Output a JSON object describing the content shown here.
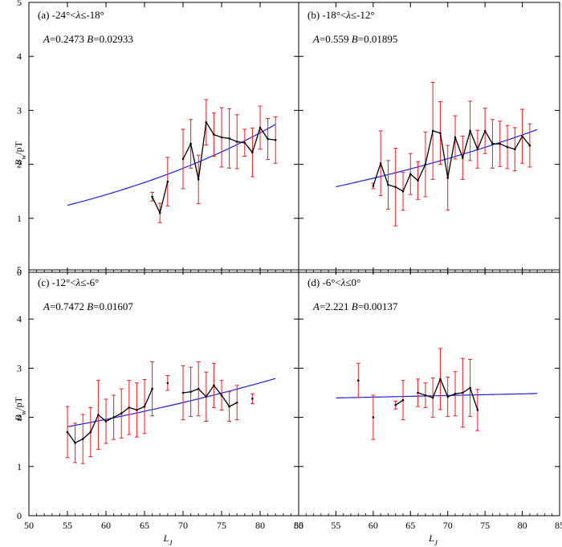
{
  "figure": {
    "ylabel": "B_w/pT",
    "xlabel": "L_J",
    "colors": {
      "data": "#000000",
      "error": "#e8202a",
      "fit": "#1f1fe0",
      "frame": "#000000"
    }
  },
  "chart_data": [
    {
      "type": "line",
      "panel_label": "(a) -24°<λ≤-18°",
      "params": {
        "A_name": "A",
        "A_value": "=0.2473",
        "B_name": "B",
        "B_value": "=0.02933"
      },
      "fit": {
        "A": 0.2473,
        "B": 0.02933,
        "x_range": [
          55,
          82
        ],
        "formula": "A*exp(B*L)"
      },
      "xlim": [
        50,
        85
      ],
      "ylim": [
        0,
        5
      ],
      "xticks": [
        50,
        55,
        60,
        65,
        70,
        75,
        80,
        85
      ],
      "yticks": [
        0,
        1,
        2,
        3,
        4,
        5
      ],
      "segments": [
        [
          {
            "x": 66,
            "y": 1.4,
            "err": 0.08
          },
          {
            "x": 67,
            "y": 1.1,
            "err": 0.18
          },
          {
            "x": 68,
            "y": 1.68,
            "err": 0.45
          }
        ],
        [
          {
            "x": 70,
            "y": 2.1,
            "err": 0.55
          },
          {
            "x": 71,
            "y": 2.38,
            "err": 0.45
          },
          {
            "x": 72,
            "y": 1.72,
            "err": 0.45
          },
          {
            "x": 73,
            "y": 2.78,
            "err": 0.42
          },
          {
            "x": 74,
            "y": 2.55,
            "err": 0.4
          },
          {
            "x": 75,
            "y": 2.5,
            "err": 0.55
          },
          {
            "x": 76,
            "y": 2.48,
            "err": 0.55
          },
          {
            "x": 77,
            "y": 2.42,
            "err": 0.5
          },
          {
            "x": 78,
            "y": 2.4,
            "err": 0.25
          },
          {
            "x": 79,
            "y": 2.22,
            "err": 0.45
          },
          {
            "x": 80,
            "y": 2.68,
            "err": 0.4
          },
          {
            "x": 81,
            "y": 2.47,
            "err": 0.38
          },
          {
            "x": 82,
            "y": 2.45,
            "err": 0.43
          }
        ]
      ]
    },
    {
      "type": "line",
      "panel_label": "(b) -18°<λ≤-12°",
      "params": {
        "A_name": "A",
        "A_value": "=0.559",
        "B_name": "B",
        "B_value": "=0.01895"
      },
      "fit": {
        "A": 0.559,
        "B": 0.01895,
        "x_range": [
          55,
          82
        ],
        "formula": "A*exp(B*L)"
      },
      "xlim": [
        50,
        85
      ],
      "ylim": [
        0,
        5
      ],
      "xticks": [
        50,
        55,
        60,
        65,
        70,
        75,
        80,
        85
      ],
      "yticks": [
        0,
        1,
        2,
        3,
        4,
        5
      ],
      "segments": [
        [
          {
            "x": 60,
            "y": 1.6,
            "err": 0.05
          },
          {
            "x": 61,
            "y": 2.02,
            "err": 0.6
          },
          {
            "x": 62,
            "y": 1.62,
            "err": 0.45
          },
          {
            "x": 63,
            "y": 1.58,
            "err": 0.72
          },
          {
            "x": 64,
            "y": 1.5,
            "err": 0.35
          },
          {
            "x": 65,
            "y": 1.82,
            "err": 0.38
          },
          {
            "x": 66,
            "y": 1.7,
            "err": 0.35
          },
          {
            "x": 67,
            "y": 2.0,
            "err": 0.6
          },
          {
            "x": 68,
            "y": 2.62,
            "err": 0.9
          },
          {
            "x": 69,
            "y": 2.58,
            "err": 0.58
          },
          {
            "x": 70,
            "y": 1.75,
            "err": 0.6
          },
          {
            "x": 71,
            "y": 2.5,
            "err": 0.4
          },
          {
            "x": 72,
            "y": 2.12,
            "err": 0.4
          },
          {
            "x": 73,
            "y": 2.62,
            "err": 0.55
          },
          {
            "x": 74,
            "y": 2.28,
            "err": 0.35
          },
          {
            "x": 75,
            "y": 2.62,
            "err": 0.42
          },
          {
            "x": 76,
            "y": 2.38,
            "err": 0.45
          },
          {
            "x": 77,
            "y": 2.38,
            "err": 0.42
          },
          {
            "x": 78,
            "y": 2.32,
            "err": 0.4
          },
          {
            "x": 79,
            "y": 2.28,
            "err": 0.4
          },
          {
            "x": 80,
            "y": 2.52,
            "err": 0.5
          },
          {
            "x": 81,
            "y": 2.35,
            "err": 0.4
          }
        ]
      ]
    },
    {
      "type": "line",
      "panel_label": "(c) -12°<λ≤-6°",
      "params": {
        "A_name": "A",
        "A_value": "=0.7472",
        "B_name": "B",
        "B_value": "=0.01607"
      },
      "fit": {
        "A": 0.7472,
        "B": 0.01607,
        "x_range": [
          55,
          82
        ],
        "formula": "A*exp(B*L)"
      },
      "xlim": [
        50,
        85
      ],
      "ylim": [
        0,
        5
      ],
      "xticks": [
        50,
        55,
        60,
        65,
        70,
        75,
        80,
        85
      ],
      "yticks": [
        0,
        1,
        2,
        3,
        4,
        5
      ],
      "segments": [
        [
          {
            "x": 55,
            "y": 1.7,
            "err": 0.52
          },
          {
            "x": 56,
            "y": 1.48,
            "err": 0.4
          },
          {
            "x": 57,
            "y": 1.56,
            "err": 0.5
          },
          {
            "x": 58,
            "y": 1.7,
            "err": 0.5
          },
          {
            "x": 59,
            "y": 2.05,
            "err": 0.7
          },
          {
            "x": 60,
            "y": 1.92,
            "err": 0.45
          },
          {
            "x": 61,
            "y": 2.0,
            "err": 0.45
          },
          {
            "x": 62,
            "y": 2.08,
            "err": 0.5
          },
          {
            "x": 63,
            "y": 2.2,
            "err": 0.55
          },
          {
            "x": 64,
            "y": 2.15,
            "err": 0.55
          },
          {
            "x": 65,
            "y": 2.22,
            "err": 0.55
          },
          {
            "x": 66,
            "y": 2.58,
            "err": 0.55
          }
        ],
        [
          {
            "x": 68,
            "y": 2.7,
            "err": 0.15
          }
        ],
        [
          {
            "x": 70,
            "y": 2.5,
            "err": 0.55
          },
          {
            "x": 71,
            "y": 2.52,
            "err": 0.5
          },
          {
            "x": 72,
            "y": 2.58,
            "err": 0.55
          },
          {
            "x": 73,
            "y": 2.42,
            "err": 0.5
          },
          {
            "x": 74,
            "y": 2.65,
            "err": 0.45
          },
          {
            "x": 75,
            "y": 2.45,
            "err": 0.3
          },
          {
            "x": 76,
            "y": 2.22,
            "err": 0.3
          },
          {
            "x": 77,
            "y": 2.3,
            "err": 0.35
          }
        ],
        [
          {
            "x": 79,
            "y": 2.38,
            "err": 0.1
          }
        ]
      ]
    },
    {
      "type": "line",
      "panel_label": "(d) -6°<λ≤0°",
      "params": {
        "A_name": "A",
        "A_value": "=2.221",
        "B_name": "B",
        "B_value": "=0.00137"
      },
      "fit": {
        "A": 2.221,
        "B": 0.00137,
        "x_range": [
          55,
          82
        ],
        "formula": "A*exp(B*L)"
      },
      "xlim": [
        50,
        85
      ],
      "ylim": [
        0,
        5
      ],
      "xticks": [
        50,
        55,
        60,
        65,
        70,
        75,
        80,
        85
      ],
      "yticks": [
        0,
        1,
        2,
        3,
        4,
        5
      ],
      "segments": [
        [
          {
            "x": 58,
            "y": 2.75,
            "err": 0.35
          }
        ],
        [
          {
            "x": 60,
            "y": 2.0,
            "err": 0.45
          }
        ],
        [
          {
            "x": 63,
            "y": 2.25,
            "err": 0.08
          },
          {
            "x": 64,
            "y": 2.35,
            "err": 0.4
          }
        ],
        [
          {
            "x": 66,
            "y": 2.5,
            "err": 0.28
          },
          {
            "x": 67,
            "y": 2.45,
            "err": 0.25
          },
          {
            "x": 68,
            "y": 2.4,
            "err": 0.4
          },
          {
            "x": 69,
            "y": 2.78,
            "err": 0.62
          },
          {
            "x": 70,
            "y": 2.42,
            "err": 0.4
          },
          {
            "x": 71,
            "y": 2.48,
            "err": 0.45
          },
          {
            "x": 72,
            "y": 2.5,
            "err": 0.7
          },
          {
            "x": 73,
            "y": 2.6,
            "err": 0.58
          },
          {
            "x": 74,
            "y": 2.15,
            "err": 0.42
          }
        ]
      ]
    }
  ]
}
